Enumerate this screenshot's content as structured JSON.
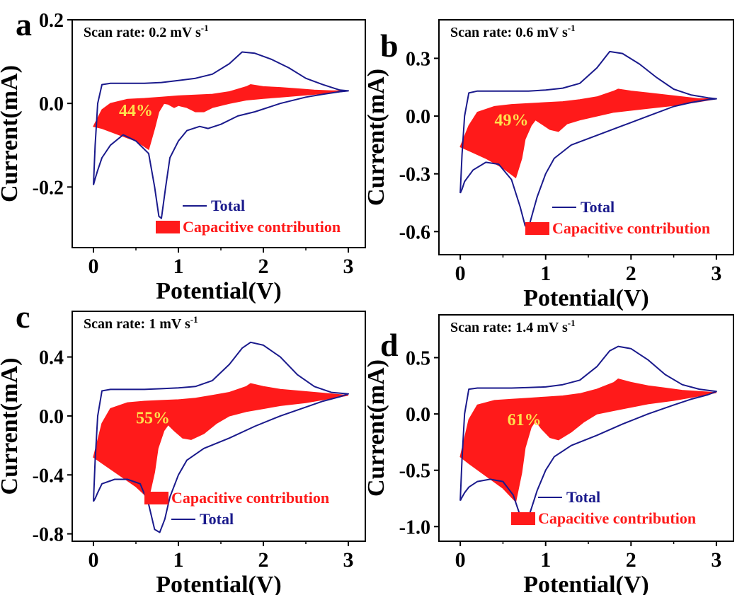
{
  "colors": {
    "total": "#1a1a8c",
    "capacitive": "#ff1a1a",
    "percent": "#ffe14d",
    "axis": "#000000"
  },
  "chart_data": [
    {
      "type": "area",
      "panel_label": "a",
      "annotation": "Scan rate: 0.2 mV s",
      "annotation_sup": "-1",
      "percent_label": "44%",
      "xlabel": "Potential(V)",
      "ylabel": "Current(mA)",
      "xlim": [
        -0.25,
        3.2
      ],
      "ylim": [
        -0.345,
        0.2
      ],
      "xticks": [
        0,
        1,
        2,
        3
      ],
      "yticks": [
        0.2,
        0.0,
        -0.2
      ],
      "ytick_labels": [
        "0.2",
        "0.0",
        "-0.2"
      ],
      "legend": [
        {
          "kind": "line",
          "label": "Total"
        },
        {
          "kind": "fill",
          "label": "Capacitive contribution"
        }
      ],
      "series": [
        {
          "name": "Total",
          "kind": "line",
          "x": [
            0.0,
            0.02,
            0.05,
            0.1,
            0.2,
            0.4,
            0.6,
            0.8,
            1.0,
            1.2,
            1.4,
            1.6,
            1.75,
            1.9,
            2.1,
            2.3,
            2.5,
            2.7,
            2.9,
            3.0,
            2.9,
            2.7,
            2.5,
            2.2,
            1.9,
            1.7,
            1.5,
            1.35,
            1.25,
            1.1,
            1.0,
            0.9,
            0.85,
            0.8,
            0.77,
            0.72,
            0.65,
            0.5,
            0.35,
            0.2,
            0.1,
            0.05,
            0.02,
            0.0
          ],
          "y": [
            -0.195,
            -0.1,
            0.0,
            0.045,
            0.048,
            0.048,
            0.048,
            0.05,
            0.055,
            0.06,
            0.07,
            0.095,
            0.123,
            0.12,
            0.105,
            0.085,
            0.06,
            0.045,
            0.032,
            0.03,
            0.028,
            0.022,
            0.015,
            0.0,
            -0.02,
            -0.03,
            -0.05,
            -0.06,
            -0.055,
            -0.065,
            -0.09,
            -0.13,
            -0.2,
            -0.275,
            -0.27,
            -0.2,
            -0.12,
            -0.09,
            -0.075,
            -0.1,
            -0.13,
            -0.16,
            -0.18,
            -0.195
          ]
        },
        {
          "name": "Capacitive contribution",
          "kind": "fill",
          "x": [
            0.0,
            0.1,
            0.2,
            0.4,
            0.6,
            0.8,
            1.0,
            1.2,
            1.4,
            1.6,
            1.8,
            1.85,
            2.0,
            2.2,
            2.4,
            2.6,
            2.8,
            3.0,
            2.8,
            2.5,
            2.2,
            2.0,
            1.8,
            1.6,
            1.4,
            1.3,
            1.2,
            1.1,
            1.0,
            0.95,
            0.88,
            0.83,
            0.77,
            0.72,
            0.65,
            0.5,
            0.3,
            0.1,
            0.0
          ],
          "y": [
            -0.055,
            -0.015,
            0.0,
            0.01,
            0.012,
            0.015,
            0.018,
            0.02,
            0.022,
            0.028,
            0.04,
            0.045,
            0.04,
            0.038,
            0.035,
            0.032,
            0.03,
            0.03,
            0.025,
            0.02,
            0.015,
            0.012,
            0.008,
            0.0,
            -0.01,
            -0.02,
            -0.02,
            -0.01,
            -0.005,
            -0.01,
            -0.002,
            0.0,
            -0.02,
            -0.06,
            -0.11,
            -0.09,
            -0.075,
            -0.06,
            -0.055
          ]
        }
      ]
    },
    {
      "type": "area",
      "panel_label": "b",
      "annotation": "Scan rate: 0.6 mV s",
      "annotation_sup": "-1",
      "percent_label": "49%",
      "xlabel": "Potential(V)",
      "ylabel": "Current(mA)",
      "xlim": [
        -0.25,
        3.2
      ],
      "ylim": [
        -0.72,
        0.5
      ],
      "xticks": [
        0,
        1,
        2,
        3
      ],
      "yticks": [
        0.3,
        0.0,
        -0.3,
        -0.6
      ],
      "ytick_labels": [
        "0.3",
        "0.0",
        "-0.3",
        "-0.6"
      ],
      "legend": [
        {
          "kind": "line",
          "label": "Total"
        },
        {
          "kind": "fill",
          "label": "Capacitive contribution"
        }
      ],
      "series": [
        {
          "name": "Total",
          "kind": "line",
          "x": [
            0.0,
            0.02,
            0.05,
            0.1,
            0.2,
            0.4,
            0.6,
            0.8,
            1.0,
            1.2,
            1.4,
            1.6,
            1.75,
            1.9,
            2.1,
            2.3,
            2.5,
            2.7,
            2.9,
            3.0,
            2.9,
            2.7,
            2.5,
            2.2,
            1.9,
            1.6,
            1.3,
            1.1,
            1.0,
            0.9,
            0.85,
            0.8,
            0.76,
            0.7,
            0.6,
            0.45,
            0.3,
            0.15,
            0.05,
            0.02,
            0.0
          ],
          "y": [
            -0.4,
            -0.2,
            0.0,
            0.12,
            0.13,
            0.13,
            0.13,
            0.13,
            0.135,
            0.145,
            0.17,
            0.25,
            0.335,
            0.325,
            0.27,
            0.2,
            0.14,
            0.11,
            0.095,
            0.09,
            0.085,
            0.07,
            0.05,
            0.0,
            -0.05,
            -0.1,
            -0.15,
            -0.22,
            -0.3,
            -0.42,
            -0.5,
            -0.58,
            -0.57,
            -0.47,
            -0.33,
            -0.25,
            -0.24,
            -0.28,
            -0.34,
            -0.38,
            -0.4
          ]
        },
        {
          "name": "Capacitive contribution",
          "kind": "fill",
          "x": [
            0.0,
            0.1,
            0.2,
            0.4,
            0.6,
            0.8,
            1.0,
            1.2,
            1.4,
            1.6,
            1.8,
            1.85,
            2.0,
            2.2,
            2.4,
            2.6,
            2.8,
            3.0,
            2.8,
            2.5,
            2.2,
            2.0,
            1.8,
            1.6,
            1.4,
            1.25,
            1.15,
            1.05,
            0.95,
            0.88,
            0.83,
            0.76,
            0.72,
            0.65,
            0.5,
            0.3,
            0.1,
            0.0
          ],
          "y": [
            -0.16,
            -0.05,
            0.02,
            0.05,
            0.06,
            0.065,
            0.07,
            0.075,
            0.085,
            0.1,
            0.13,
            0.14,
            0.13,
            0.12,
            0.11,
            0.1,
            0.09,
            0.09,
            0.075,
            0.055,
            0.04,
            0.03,
            0.02,
            0.0,
            -0.02,
            -0.04,
            -0.08,
            -0.07,
            -0.04,
            -0.02,
            -0.05,
            -0.12,
            -0.22,
            -0.32,
            -0.27,
            -0.22,
            -0.18,
            -0.16
          ]
        }
      ]
    },
    {
      "type": "area",
      "panel_label": "c",
      "annotation": "Scan rate: 1 mV s",
      "annotation_sup": "-1",
      "percent_label": "55%",
      "xlabel": "Potential(V)",
      "ylabel": "Current(mA)",
      "xlim": [
        -0.25,
        3.2
      ],
      "ylim": [
        -0.85,
        0.71
      ],
      "xticks": [
        0,
        1,
        2,
        3
      ],
      "yticks": [
        0.4,
        0.0,
        -0.4,
        -0.8
      ],
      "ytick_labels": [
        "0.4",
        "0.0",
        "-0.4",
        "-0.8"
      ],
      "legend": [
        {
          "kind": "fill",
          "label": "Capacitive contribution"
        },
        {
          "kind": "line",
          "label": "Total"
        }
      ],
      "series": [
        {
          "name": "Total",
          "kind": "line",
          "x": [
            0.0,
            0.02,
            0.05,
            0.1,
            0.2,
            0.4,
            0.6,
            0.8,
            1.0,
            1.2,
            1.4,
            1.6,
            1.75,
            1.85,
            2.0,
            2.2,
            2.4,
            2.6,
            2.8,
            3.0,
            2.9,
            2.7,
            2.5,
            2.2,
            1.9,
            1.6,
            1.3,
            1.1,
            1.0,
            0.9,
            0.84,
            0.78,
            0.72,
            0.65,
            0.55,
            0.4,
            0.25,
            0.1,
            0.05,
            0.02,
            0.0
          ],
          "y": [
            -0.58,
            -0.3,
            0.0,
            0.17,
            0.18,
            0.18,
            0.18,
            0.185,
            0.19,
            0.2,
            0.24,
            0.35,
            0.46,
            0.5,
            0.48,
            0.4,
            0.28,
            0.2,
            0.16,
            0.15,
            0.13,
            0.1,
            0.06,
            0.0,
            -0.07,
            -0.15,
            -0.22,
            -0.3,
            -0.4,
            -0.55,
            -0.7,
            -0.79,
            -0.77,
            -0.6,
            -0.46,
            -0.43,
            -0.43,
            -0.46,
            -0.52,
            -0.56,
            -0.58
          ]
        },
        {
          "name": "Capacitive contribution",
          "kind": "fill",
          "x": [
            0.0,
            0.1,
            0.2,
            0.4,
            0.6,
            0.8,
            1.0,
            1.2,
            1.4,
            1.6,
            1.8,
            1.85,
            2.0,
            2.2,
            2.4,
            2.6,
            2.8,
            3.0,
            2.8,
            2.5,
            2.2,
            2.0,
            1.8,
            1.6,
            1.45,
            1.3,
            1.15,
            1.05,
            0.95,
            0.88,
            0.83,
            0.76,
            0.72,
            0.65,
            0.5,
            0.3,
            0.1,
            0.0
          ],
          "y": [
            -0.28,
            -0.05,
            0.05,
            0.09,
            0.1,
            0.105,
            0.11,
            0.12,
            0.14,
            0.16,
            0.2,
            0.22,
            0.2,
            0.18,
            0.17,
            0.16,
            0.15,
            0.14,
            0.12,
            0.09,
            0.07,
            0.05,
            0.03,
            0.0,
            -0.05,
            -0.12,
            -0.16,
            -0.15,
            -0.1,
            -0.06,
            -0.1,
            -0.22,
            -0.38,
            -0.56,
            -0.48,
            -0.4,
            -0.32,
            -0.28
          ]
        }
      ]
    },
    {
      "type": "area",
      "panel_label": "d",
      "annotation": "Scan rate: 1.4 mV s",
      "annotation_sup": "-1",
      "percent_label": "61%",
      "xlabel": "Potential(V)",
      "ylabel": "Current(mA)",
      "xlim": [
        -0.25,
        3.2
      ],
      "ylim": [
        -1.13,
        0.88
      ],
      "xticks": [
        0,
        1,
        2,
        3
      ],
      "yticks": [
        0.5,
        0.0,
        -0.5,
        -1.0
      ],
      "ytick_labels": [
        "0.5",
        "0.0",
        "-0.5",
        "-1.0"
      ],
      "legend": [
        {
          "kind": "line",
          "label": "Total"
        },
        {
          "kind": "fill",
          "label": "Capacitive contribution"
        }
      ],
      "series": [
        {
          "name": "Total",
          "kind": "line",
          "x": [
            0.0,
            0.02,
            0.05,
            0.1,
            0.2,
            0.4,
            0.6,
            0.8,
            1.0,
            1.2,
            1.4,
            1.6,
            1.75,
            1.85,
            2.0,
            2.2,
            2.4,
            2.6,
            2.8,
            3.0,
            2.9,
            2.7,
            2.5,
            2.2,
            1.9,
            1.6,
            1.3,
            1.1,
            1.0,
            0.9,
            0.82,
            0.75,
            0.7,
            0.62,
            0.5,
            0.35,
            0.2,
            0.1,
            0.05,
            0.02,
            0.0
          ],
          "y": [
            -0.77,
            -0.4,
            0.0,
            0.22,
            0.23,
            0.23,
            0.23,
            0.235,
            0.24,
            0.26,
            0.3,
            0.42,
            0.56,
            0.6,
            0.58,
            0.48,
            0.35,
            0.26,
            0.22,
            0.2,
            0.17,
            0.13,
            0.08,
            0.0,
            -0.09,
            -0.19,
            -0.28,
            -0.38,
            -0.5,
            -0.68,
            -0.87,
            -0.94,
            -0.9,
            -0.72,
            -0.6,
            -0.58,
            -0.6,
            -0.65,
            -0.7,
            -0.74,
            -0.77
          ]
        },
        {
          "name": "Capacitive contribution",
          "kind": "fill",
          "x": [
            0.0,
            0.1,
            0.2,
            0.4,
            0.6,
            0.8,
            1.0,
            1.2,
            1.4,
            1.6,
            1.8,
            1.85,
            2.0,
            2.2,
            2.4,
            2.6,
            2.8,
            3.0,
            2.8,
            2.5,
            2.2,
            2.0,
            1.8,
            1.6,
            1.45,
            1.3,
            1.15,
            1.05,
            0.95,
            0.88,
            0.83,
            0.76,
            0.72,
            0.65,
            0.5,
            0.3,
            0.1,
            0.0
          ],
          "y": [
            -0.38,
            -0.05,
            0.08,
            0.12,
            0.13,
            0.14,
            0.15,
            0.16,
            0.18,
            0.22,
            0.28,
            0.31,
            0.28,
            0.25,
            0.23,
            0.21,
            0.2,
            0.19,
            0.16,
            0.12,
            0.09,
            0.06,
            0.03,
            0.0,
            -0.07,
            -0.16,
            -0.23,
            -0.21,
            -0.13,
            -0.06,
            -0.12,
            -0.3,
            -0.52,
            -0.78,
            -0.66,
            -0.55,
            -0.44,
            -0.38
          ]
        }
      ]
    }
  ]
}
